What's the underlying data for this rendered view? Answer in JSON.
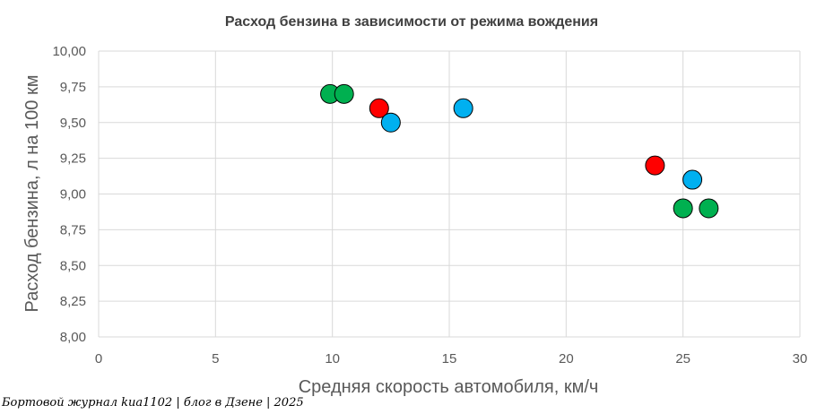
{
  "chart_data": {
    "type": "scatter",
    "title": "Расход бензина  в зависимости от режима вождения",
    "xlabel": "Средняя скорость автомобиля, км/ч",
    "ylabel": "Расход бензина, л на 100 км",
    "xlim": [
      0,
      30
    ],
    "ylim": [
      8,
      10
    ],
    "x_ticks": [
      "0",
      "5",
      "10",
      "15",
      "20",
      "25",
      "30"
    ],
    "y_ticks": [
      "8,00",
      "8,25",
      "8,50",
      "8,75",
      "9,00",
      "9,25",
      "9,50",
      "9,75",
      "10,00"
    ],
    "grid": true,
    "legend": "none",
    "series": [
      {
        "color": "#00b050",
        "points": [
          {
            "x": 9.9,
            "y": 9.7
          },
          {
            "x": 10.5,
            "y": 9.7
          },
          {
            "x": 25.0,
            "y": 8.9
          },
          {
            "x": 26.1,
            "y": 8.9
          }
        ]
      },
      {
        "color": "#ff0000",
        "points": [
          {
            "x": 12.0,
            "y": 9.6
          },
          {
            "x": 23.8,
            "y": 9.2
          }
        ]
      },
      {
        "color": "#00b0f0",
        "points": [
          {
            "x": 12.5,
            "y": 9.5
          },
          {
            "x": 15.6,
            "y": 9.6
          },
          {
            "x": 25.4,
            "y": 9.1
          }
        ]
      }
    ]
  },
  "watermark": "Бортовой журнал kиа1102 | блог в Дзене | 2025"
}
